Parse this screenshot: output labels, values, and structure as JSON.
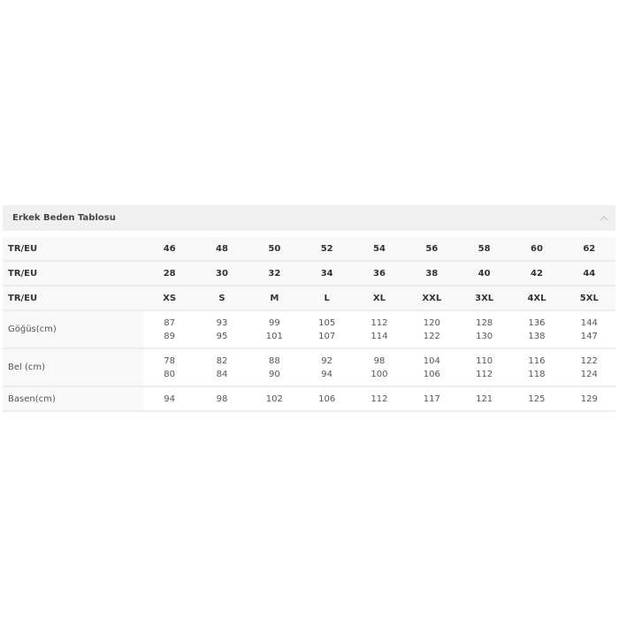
{
  "panel": {
    "title": "Erkek Beden Tablosu",
    "toggle_icon": "chevron-up-icon"
  },
  "table": {
    "size_rows": [
      {
        "label": "TR/EU",
        "values": [
          "46",
          "48",
          "50",
          "52",
          "54",
          "56",
          "58",
          "60",
          "62"
        ]
      },
      {
        "label": "TR/EU",
        "values": [
          "28",
          "30",
          "32",
          "34",
          "36",
          "38",
          "40",
          "42",
          "44"
        ]
      },
      {
        "label": "TR/EU",
        "values": [
          "XS",
          "S",
          "M",
          "L",
          "XL",
          "XXL",
          "3XL",
          "4XL",
          "5XL"
        ]
      }
    ],
    "measurement_rows": [
      {
        "label": "Göğüs(cm)",
        "values": [
          [
            "87",
            "89"
          ],
          [
            "93",
            "95"
          ],
          [
            "99",
            "101"
          ],
          [
            "105",
            "107"
          ],
          [
            "112",
            "114"
          ],
          [
            "120",
            "122"
          ],
          [
            "128",
            "130"
          ],
          [
            "136",
            "138"
          ],
          [
            "144",
            "147"
          ]
        ]
      },
      {
        "label": "Bel (cm)",
        "values": [
          [
            "78",
            "80"
          ],
          [
            "82",
            "84"
          ],
          [
            "88",
            "90"
          ],
          [
            "92",
            "94"
          ],
          [
            "98",
            "100"
          ],
          [
            "104",
            "106"
          ],
          [
            "110",
            "112"
          ],
          [
            "116",
            "118"
          ],
          [
            "122",
            "124"
          ]
        ]
      },
      {
        "label": "Basen(cm)",
        "values": [
          [
            "94"
          ],
          [
            "98"
          ],
          [
            "102"
          ],
          [
            "106"
          ],
          [
            "112"
          ],
          [
            "117"
          ],
          [
            "121"
          ],
          [
            "125"
          ],
          [
            "129"
          ]
        ]
      }
    ]
  }
}
